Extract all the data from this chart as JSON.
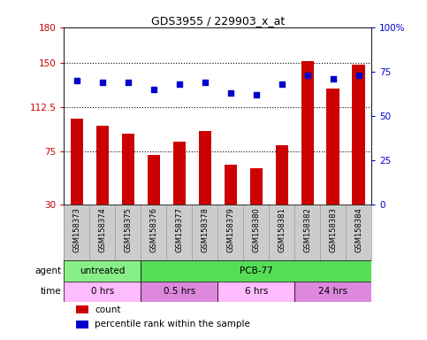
{
  "title": "GDS3955 / 229903_x_at",
  "samples": [
    "GSM158373",
    "GSM158374",
    "GSM158375",
    "GSM158376",
    "GSM158377",
    "GSM158378",
    "GSM158379",
    "GSM158380",
    "GSM158381",
    "GSM158382",
    "GSM158383",
    "GSM158384"
  ],
  "bar_values": [
    103,
    97,
    90,
    72,
    83,
    92,
    64,
    61,
    80,
    151,
    128,
    148
  ],
  "percentile_values": [
    70,
    69,
    69,
    65,
    68,
    69,
    63,
    62,
    68,
    73,
    71,
    73
  ],
  "bar_color": "#cc0000",
  "dot_color": "#0000cc",
  "left_ylim": [
    30,
    180
  ],
  "left_yticks": [
    30,
    75,
    112.5,
    150,
    180
  ],
  "left_yticklabels": [
    "30",
    "75",
    "112.5",
    "150",
    "180"
  ],
  "right_ylim": [
    0,
    100
  ],
  "right_yticks": [
    0,
    25,
    50,
    75,
    100
  ],
  "right_yticklabels": [
    "0",
    "25",
    "50",
    "75",
    "100%"
  ],
  "hlines": [
    150,
    112.5,
    75
  ],
  "agent_groups": [
    {
      "label": "untreated",
      "start": 0,
      "end": 3,
      "color": "#88ee88"
    },
    {
      "label": "PCB-77",
      "start": 3,
      "end": 12,
      "color": "#55dd55"
    }
  ],
  "time_groups": [
    {
      "label": "0 hrs",
      "start": 0,
      "end": 3,
      "color": "#ffbbff"
    },
    {
      "label": "0.5 hrs",
      "start": 3,
      "end": 6,
      "color": "#dd88dd"
    },
    {
      "label": "6 hrs",
      "start": 6,
      "end": 9,
      "color": "#ffbbff"
    },
    {
      "label": "24 hrs",
      "start": 9,
      "end": 12,
      "color": "#dd88dd"
    }
  ],
  "tick_color_left": "#cc0000",
  "tick_color_right": "#0000cc",
  "bg_color": "#ffffff",
  "bar_width": 0.5,
  "label_strip_color": "#cccccc",
  "label_strip_edge": "#999999"
}
